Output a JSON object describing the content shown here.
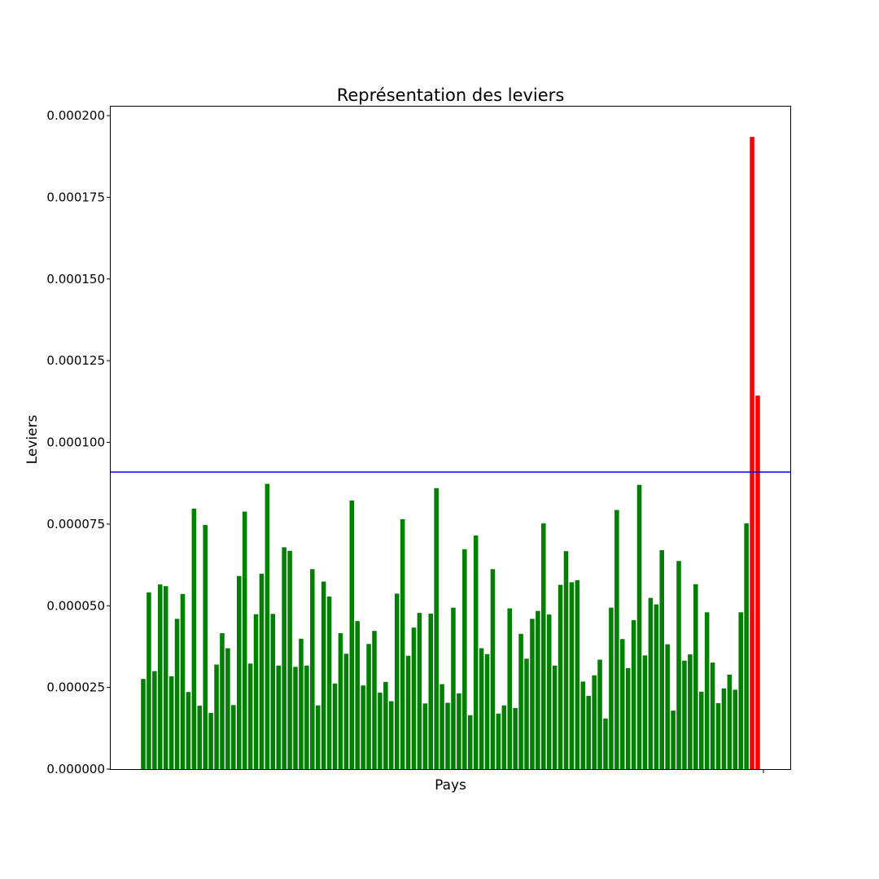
{
  "chart_data": {
    "type": "bar",
    "title": "Représentation des leviers",
    "xlabel": "Pays",
    "ylabel": "Leviers",
    "ylim": [
      0,
      0.000203
    ],
    "yticks": [
      "0.000000",
      "0.000025",
      "0.000050",
      "0.000075",
      "0.000100",
      "0.000125",
      "0.000150",
      "0.000175",
      "0.000200"
    ],
    "threshold": 9.09e-05,
    "colors": {
      "normal": "#008000",
      "high": "#ff0000",
      "threshold": "#0000ff"
    },
    "series": [
      {
        "values": [
          2.76e-05,
          5.41e-05,
          3e-05,
          5.65e-05,
          5.6e-05,
          2.84e-05,
          4.6e-05,
          5.36e-05,
          2.36e-05,
          7.97e-05,
          1.94e-05,
          7.47e-05,
          1.72e-05,
          3.2e-05,
          4.16e-05,
          3.7e-05,
          1.96e-05,
          5.91e-05,
          7.88e-05,
          3.23e-05,
          4.74e-05,
          5.98e-05,
          8.73e-05,
          4.75e-05,
          3.17e-05,
          6.79e-05,
          6.68e-05,
          3.13e-05,
          3.99e-05,
          3.17e-05,
          6.12e-05,
          1.95e-05,
          5.74e-05,
          5.28e-05,
          2.62e-05,
          4.16e-05,
          3.53e-05,
          8.22e-05,
          4.53e-05,
          2.56e-05,
          3.83e-05,
          4.23e-05,
          2.34e-05,
          2.67e-05,
          2.08e-05,
          5.37e-05,
          7.65e-05,
          3.47e-05,
          4.33e-05,
          4.78e-05,
          2.01e-05,
          4.76e-05,
          8.6e-05,
          2.6e-05,
          2.03e-05,
          4.94e-05,
          2.32e-05,
          6.73e-05,
          1.65e-05,
          7.15e-05,
          3.7e-05,
          3.52e-05,
          6.12e-05,
          1.7e-05,
          1.95e-05,
          4.92e-05,
          1.87e-05,
          4.14e-05,
          3.38e-05,
          4.6e-05,
          4.84e-05,
          7.52e-05,
          4.73e-05,
          3.17e-05,
          5.64e-05,
          6.67e-05,
          5.72e-05,
          5.78e-05,
          2.68e-05,
          2.24e-05,
          2.87e-05,
          3.35e-05,
          1.55e-05,
          4.94e-05,
          7.93e-05,
          3.98e-05,
          3.09e-05,
          4.56e-05,
          8.7e-05,
          3.48e-05,
          5.24e-05,
          5.04e-05,
          6.7e-05,
          3.82e-05,
          1.79e-05,
          6.37e-05,
          3.32e-05,
          3.51e-05,
          5.66e-05,
          2.37e-05,
          4.8e-05,
          3.26e-05,
          2.02e-05,
          2.47e-05,
          2.89e-05,
          2.43e-05,
          4.8e-05,
          7.52e-05,
          0.0001935,
          0.0001143
        ]
      }
    ]
  }
}
